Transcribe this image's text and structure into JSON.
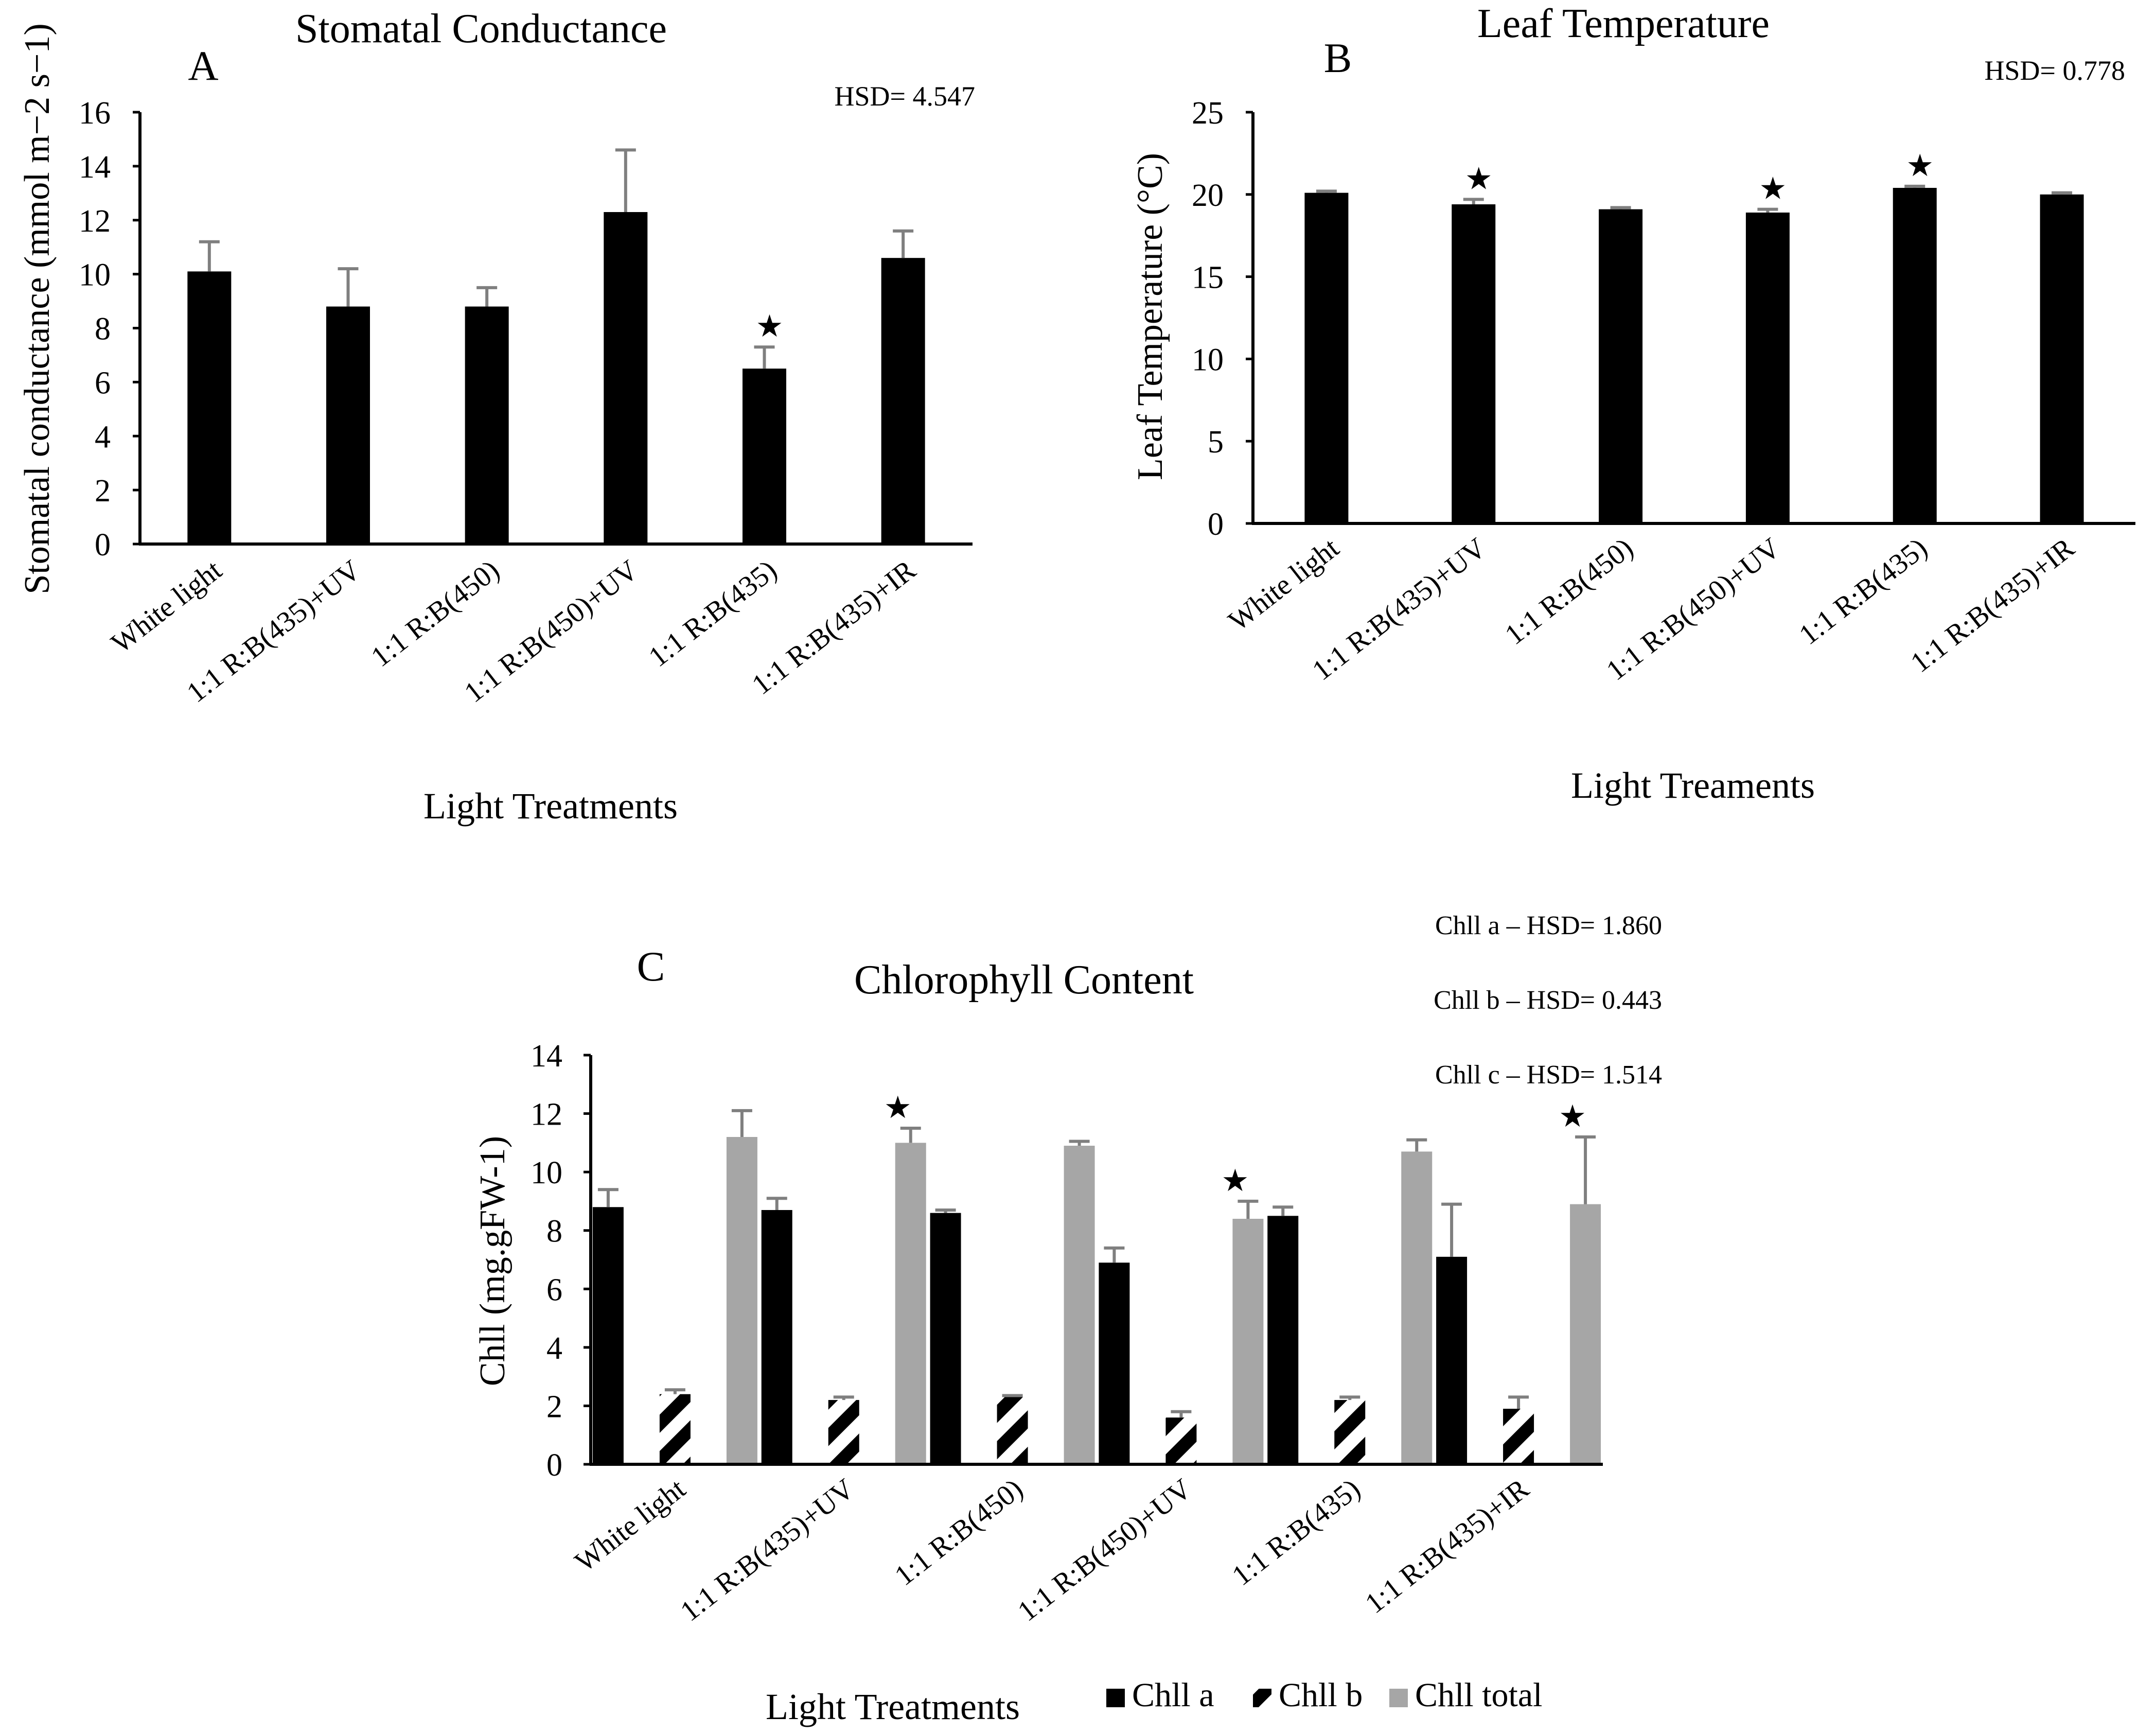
{
  "chart_data": [
    {
      "panel": "A",
      "type": "bar",
      "title": "Stomatal Conductance",
      "xlabel": "Light Treatments",
      "ylabel": "Stomatal conductance (mmol m−2 s−1)",
      "ylim": [
        0,
        16
      ],
      "yticks": [
        0,
        2,
        4,
        6,
        8,
        10,
        12,
        14,
        16
      ],
      "hsd_text": "HSD= 4.547",
      "categories": [
        "White light",
        "1:1 R:B(435)+UV",
        "1:1 R:B(450)",
        "1:1 R:B(450)+UV",
        "1:1 R:B(435)",
        "1:1 R:B(435)+IR"
      ],
      "series": [
        {
          "name": "Stomatal conductance",
          "color": "#000000",
          "pattern": "solid",
          "values": [
            10.1,
            8.8,
            8.8,
            12.3,
            6.5,
            10.6
          ],
          "errors": [
            1.1,
            1.4,
            0.7,
            2.3,
            0.8,
            1.0
          ]
        }
      ],
      "stars": [
        {
          "category": 4,
          "series": 0,
          "symbol": "★"
        }
      ]
    },
    {
      "panel": "B",
      "type": "bar",
      "title": "Leaf Temperature",
      "xlabel": "Light Treaments",
      "ylabel": "Leaf Temperature (°C)",
      "ylim": [
        0,
        25
      ],
      "yticks": [
        0,
        5,
        10,
        15,
        20,
        25
      ],
      "hsd_text": "HSD= 0.778",
      "categories": [
        "White light",
        "1:1 R:B(435)+UV",
        "1:1 R:B(450)",
        "1:1 R:B(450)+UV",
        "1:1 R:B(435)",
        "1:1 R:B(435)+IR"
      ],
      "series": [
        {
          "name": "Leaf temperature",
          "color": "#000000",
          "pattern": "solid",
          "values": [
            20.1,
            19.4,
            19.1,
            18.9,
            20.4,
            20.0
          ],
          "errors": [
            0.1,
            0.3,
            0.1,
            0.2,
            0.1,
            0.1
          ]
        }
      ],
      "stars": [
        {
          "category": 1,
          "series": 0,
          "symbol": "★"
        },
        {
          "category": 3,
          "series": 0,
          "symbol": "★"
        },
        {
          "category": 4,
          "series": 0,
          "symbol": "★"
        }
      ]
    },
    {
      "panel": "C",
      "type": "bar",
      "title": "Chlorophyll Content",
      "xlabel": "Light Treatments",
      "ylabel": "Chll  (mg.gFW-1)",
      "ylim": [
        0,
        14
      ],
      "yticks": [
        0,
        2,
        4,
        6,
        8,
        10,
        12,
        14
      ],
      "hsd_lines": [
        "Chll a – HSD= 1.860",
        "Chll b – HSD= 0.443",
        "Chll c – HSD= 1.514"
      ],
      "categories": [
        "White light",
        "1:1 R:B(435)+UV",
        "1:1 R:B(450)",
        "1:1 R:B(450)+UV",
        "1:1 R:B(435)",
        "1:1 R:B(435)+IR"
      ],
      "series": [
        {
          "name": "Chll a",
          "color": "#000000",
          "pattern": "solid",
          "values": [
            8.8,
            8.7,
            8.6,
            6.9,
            8.5,
            7.1
          ],
          "errors": [
            0.6,
            0.4,
            0.1,
            0.5,
            0.3,
            1.8
          ]
        },
        {
          "name": "Chll b",
          "color": "#000000",
          "pattern": "hatch",
          "values": [
            2.4,
            2.2,
            2.3,
            1.6,
            2.2,
            1.9
          ],
          "errors": [
            0.15,
            0.1,
            0.05,
            0.2,
            0.1,
            0.4
          ]
        },
        {
          "name": "Chll total",
          "color": "#a6a6a6",
          "pattern": "solid",
          "values": [
            11.2,
            11.0,
            10.9,
            8.4,
            10.7,
            8.9
          ],
          "errors": [
            0.9,
            0.5,
            0.15,
            0.6,
            0.4,
            2.3
          ]
        }
      ],
      "stars": [
        {
          "category": 1,
          "series": 2,
          "symbol": "★"
        },
        {
          "category": 3,
          "series": 2,
          "symbol": "★"
        },
        {
          "category": 5,
          "series": 2,
          "symbol": "★"
        }
      ],
      "legend_position": "bottom"
    }
  ]
}
